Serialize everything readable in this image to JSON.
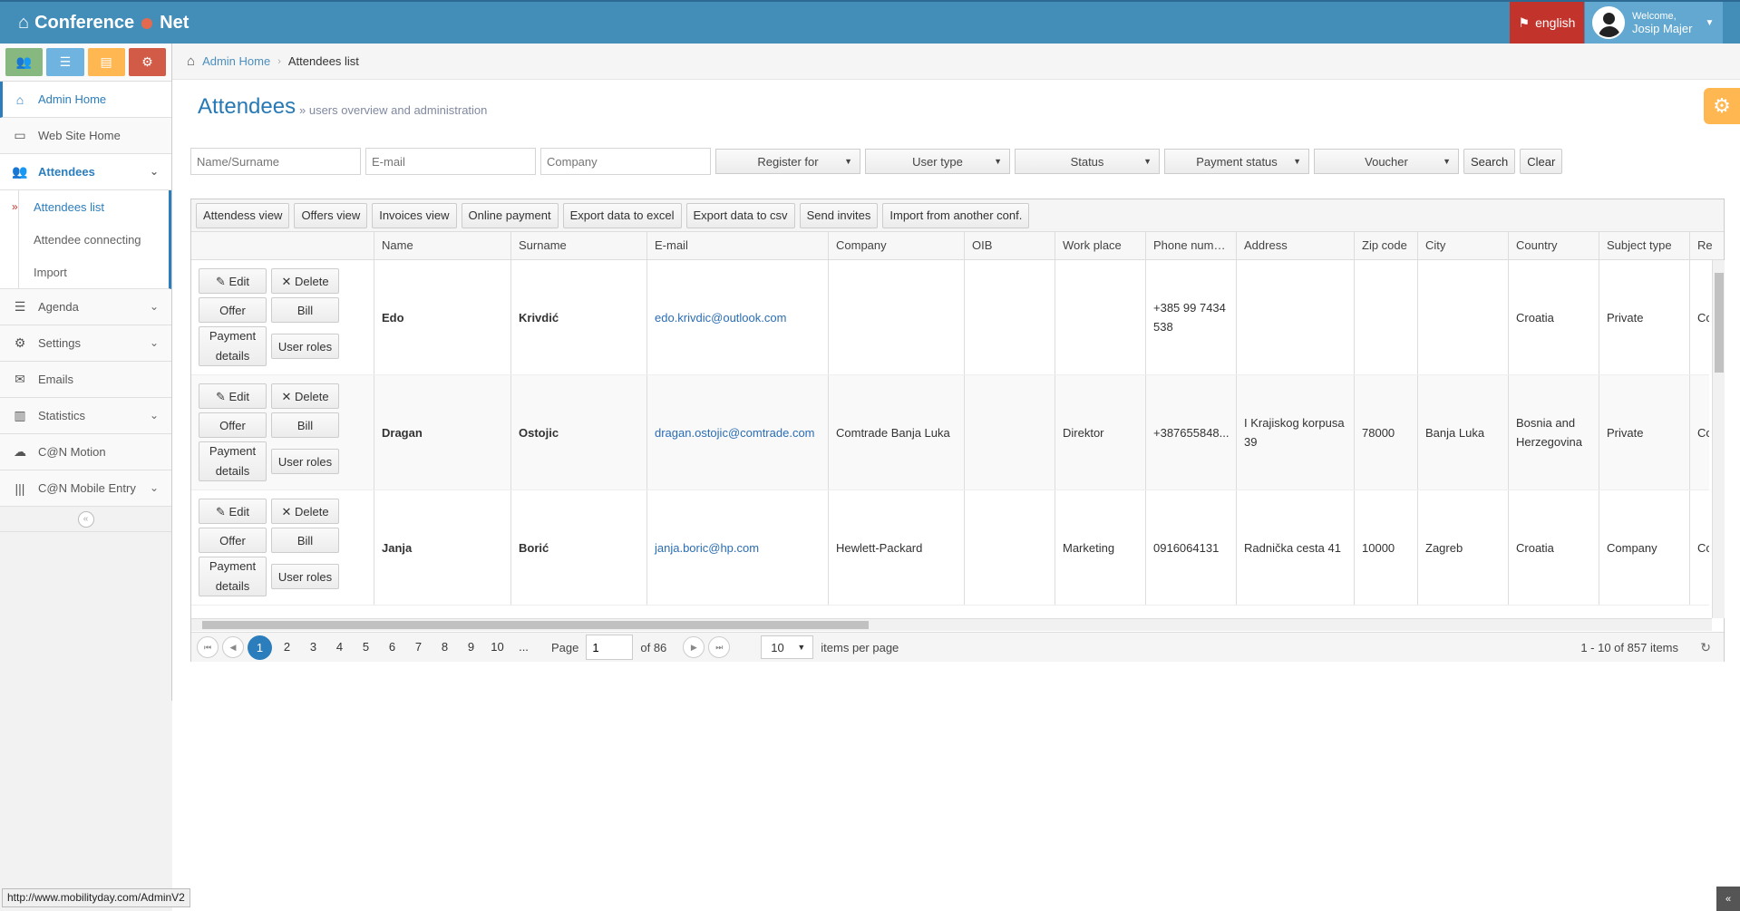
{
  "app": {
    "brand": [
      "Conference",
      "Net"
    ],
    "language": "english",
    "welcome": "Welcome,",
    "user": "Josip Majer",
    "colors": {
      "topbar": "#438eb9",
      "accent": "#2b7dbc",
      "lang": "#c2332b",
      "settings_tab": "#ffb752"
    }
  },
  "shortcuts": [
    {
      "icon": "users-icon",
      "color": "#87b87f"
    },
    {
      "icon": "list-icon",
      "color": "#6fb3e0"
    },
    {
      "icon": "briefcase-icon",
      "color": "#ffb752"
    },
    {
      "icon": "cogs-icon",
      "color": "#d15b47"
    }
  ],
  "sidebar": {
    "items": [
      {
        "label": "Admin Home",
        "icon": "home-icon"
      },
      {
        "label": "Web Site Home",
        "icon": "desktop-icon"
      },
      {
        "label": "Attendees",
        "icon": "users-icon"
      },
      {
        "label": "Agenda",
        "icon": "list-icon"
      },
      {
        "label": "Settings",
        "icon": "cogs-icon"
      },
      {
        "label": "Emails",
        "icon": "envelope-icon"
      },
      {
        "label": "Statistics",
        "icon": "bar-chart-icon"
      },
      {
        "label": "C@N Motion",
        "icon": "cloud-download-icon"
      },
      {
        "label": "C@N Mobile Entry",
        "icon": "barcode-icon"
      }
    ],
    "attendees_sub": [
      "Attendees list",
      "Attendee connecting",
      "Import"
    ]
  },
  "breadcrumb": {
    "home": "Admin Home",
    "current": "Attendees list"
  },
  "page": {
    "title": "Attendees",
    "subtitle": "» users overview and administration"
  },
  "filters": {
    "name_placeholder": "Name/Surname",
    "email_placeholder": "E-mail",
    "company_placeholder": "Company",
    "dropdowns": [
      "Register for",
      "User type",
      "Status",
      "Payment status",
      "Voucher"
    ],
    "search": "Search",
    "clear": "Clear"
  },
  "toolbar": [
    "Attendess view",
    "Offers view",
    "Invoices view",
    "Online payment",
    "Export data to excel",
    "Export data to csv",
    "Send invites",
    "Import from another conf."
  ],
  "columns": [
    "",
    "Name",
    "Surname",
    "E-mail",
    "Company",
    "OIB",
    "Work place",
    "Phone numb...",
    "Address",
    "Zip code",
    "City",
    "Country",
    "Subject type",
    "Re"
  ],
  "row_actions": {
    "edit": "Edit",
    "delete": "Delete",
    "offer": "Offer",
    "bill": "Bill",
    "payment_1": "Payment",
    "payment_2": "details",
    "roles": "User roles"
  },
  "rows": [
    {
      "name": "Edo",
      "surname": "Krivdić",
      "email": "edo.krivdic@outlook.com",
      "company": "",
      "oib": "",
      "work_place": "",
      "phone": "+385 99 7434 538",
      "address": "",
      "zip": "",
      "city": "",
      "country": "Croatia",
      "subject_type": "Private",
      "re": "Co"
    },
    {
      "name": "Dragan",
      "surname": "Ostojic",
      "email": "dragan.ostojic@comtrade.com",
      "company": "Comtrade Banja Luka",
      "oib": "",
      "work_place": "Direktor",
      "phone": "+387655848...",
      "address": "I Krajiskog korpusa 39",
      "zip": "78000",
      "city": "Banja Luka",
      "country": "Bosnia and Herzegovina",
      "subject_type": "Private",
      "re": "Co"
    },
    {
      "name": "Janja",
      "surname": "Borić",
      "email": "janja.boric@hp.com",
      "company": "Hewlett-Packard",
      "oib": "",
      "work_place": "Marketing",
      "phone": "0916064131",
      "address": "Radnička cesta 41",
      "zip": "10000",
      "city": "Zagreb",
      "country": "Croatia",
      "subject_type": "Company",
      "re": "Co"
    }
  ],
  "pager": {
    "pages": [
      "1",
      "2",
      "3",
      "4",
      "5",
      "6",
      "7",
      "8",
      "9",
      "10",
      "..."
    ],
    "current": 1,
    "page_label": "Page",
    "page_value": "1",
    "of": "of 86",
    "page_size": "10",
    "per_page": "items per page",
    "info": "1 - 10 of 857 items"
  },
  "status_url": "http://www.mobilityday.com/AdminV2"
}
